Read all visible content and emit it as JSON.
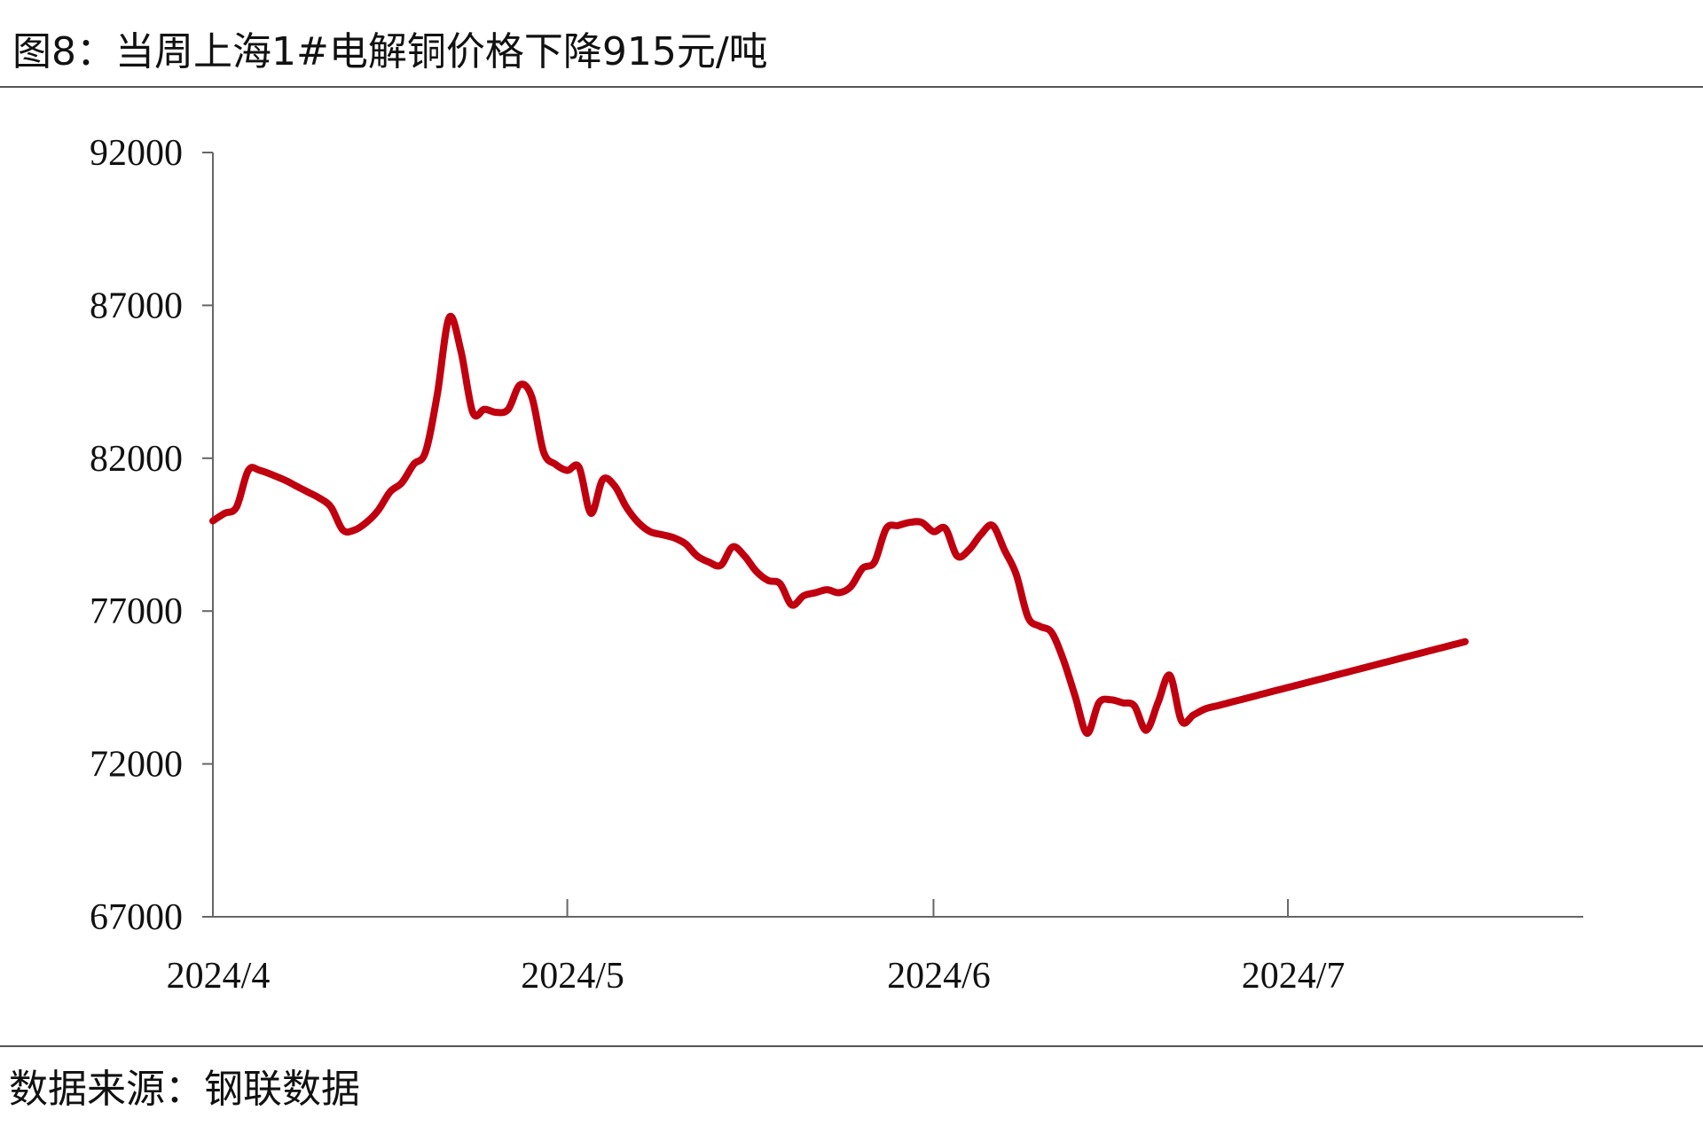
{
  "title": "图8：当周上海1#电解铜价格下降915元/吨",
  "source": "数据来源：钢联数据",
  "chart_data": {
    "type": "line",
    "title": "",
    "xlabel": "",
    "ylabel": "",
    "ylim": [
      67000,
      92000
    ],
    "yticks": [
      "92000",
      "87000",
      "82000",
      "77000",
      "72000",
      "67000"
    ],
    "ytick_values": [
      92000,
      87000,
      82000,
      77000,
      72000,
      67000
    ],
    "xlim": [
      "2024-04-01",
      "2024-07-26"
    ],
    "xticks": [
      "2024/4",
      "2024/5",
      "2024/6",
      "2024/7"
    ],
    "xtick_dates": [
      "2024-04-01",
      "2024-05-01",
      "2024-06-01",
      "2024-07-01"
    ],
    "grid": false,
    "line_color": "#c0000f",
    "series": [
      {
        "name": "",
        "x": [
          "2024-04-01",
          "2024-04-02",
          "2024-04-03",
          "2024-04-04",
          "2024-04-05",
          "2024-04-07",
          "2024-04-08",
          "2024-04-09",
          "2024-04-10",
          "2024-04-11",
          "2024-04-12",
          "2024-04-13",
          "2024-04-14",
          "2024-04-15",
          "2024-04-16",
          "2024-04-17",
          "2024-04-18",
          "2024-04-19",
          "2024-04-20",
          "2024-04-21",
          "2024-04-22",
          "2024-04-23",
          "2024-04-24",
          "2024-04-25",
          "2024-04-26",
          "2024-04-27",
          "2024-04-28",
          "2024-04-29",
          "2024-04-30",
          "2024-05-01",
          "2024-05-02",
          "2024-05-03",
          "2024-05-04",
          "2024-05-05",
          "2024-05-06",
          "2024-05-07",
          "2024-05-08",
          "2024-05-09",
          "2024-05-10",
          "2024-05-11",
          "2024-05-12",
          "2024-05-13",
          "2024-05-14",
          "2024-05-15",
          "2024-05-16",
          "2024-05-17",
          "2024-05-18",
          "2024-05-19",
          "2024-05-20",
          "2024-05-21",
          "2024-05-22",
          "2024-05-23",
          "2024-05-24",
          "2024-05-25",
          "2024-05-26",
          "2024-05-27",
          "2024-05-28",
          "2024-05-29",
          "2024-05-30",
          "2024-05-31",
          "2024-06-01",
          "2024-06-02",
          "2024-06-03",
          "2024-06-04",
          "2024-06-05",
          "2024-06-06",
          "2024-06-07",
          "2024-06-08",
          "2024-06-09",
          "2024-06-10",
          "2024-06-11",
          "2024-06-12",
          "2024-06-13",
          "2024-06-14",
          "2024-06-15",
          "2024-06-16",
          "2024-06-17",
          "2024-06-18",
          "2024-06-19",
          "2024-06-20",
          "2024-06-21",
          "2024-06-22",
          "2024-06-23",
          "2024-06-24",
          "2024-06-25",
          "2024-06-26",
          "2024-06-27",
          "2024-06-28",
          "2024-06-29",
          "2024-06-30",
          "2024-07-01",
          "2024-07-02",
          "2024-07-03",
          "2024-07-04",
          "2024-07-05",
          "2024-07-06",
          "2024-07-07",
          "2024-07-08",
          "2024-07-09",
          "2024-07-10",
          "2024-07-11",
          "2024-07-12",
          "2024-07-13",
          "2024-07-14",
          "2024-07-15",
          "2024-07-16"
        ],
        "values": [
          79950,
          80200,
          80400,
          81600,
          81600,
          81300,
          81100,
          80900,
          80700,
          80400,
          79650,
          79650,
          79900,
          80300,
          80900,
          81200,
          81800,
          82200,
          84100,
          86600,
          85500,
          83500,
          83600,
          83500,
          83600,
          84400,
          84000,
          82200,
          81800,
          81600,
          81700,
          80200,
          81300,
          81100,
          80400,
          79900,
          79600,
          79500,
          79400,
          79200,
          78800,
          78600,
          78500,
          79100,
          78800,
          78300,
          78000,
          77900,
          77200,
          77500,
          77600,
          77700,
          77600,
          77800,
          78400,
          78600,
          79700,
          79800,
          79900,
          79900,
          79600,
          79700,
          78800,
          79000,
          79500,
          79800,
          79000,
          78200,
          76800,
          76500,
          76300,
          75400,
          74200,
          73000,
          74000,
          74100,
          74000,
          73900,
          73100,
          74000,
          74900,
          73400,
          73600,
          73800,
          73900,
          74000,
          74100,
          74200,
          74300,
          74400,
          74500,
          74600,
          74700,
          74800,
          74900,
          75000,
          75100,
          75200,
          75300,
          75400,
          75500,
          75600,
          75700,
          75800,
          75900,
          76000
        ]
      }
    ]
  }
}
